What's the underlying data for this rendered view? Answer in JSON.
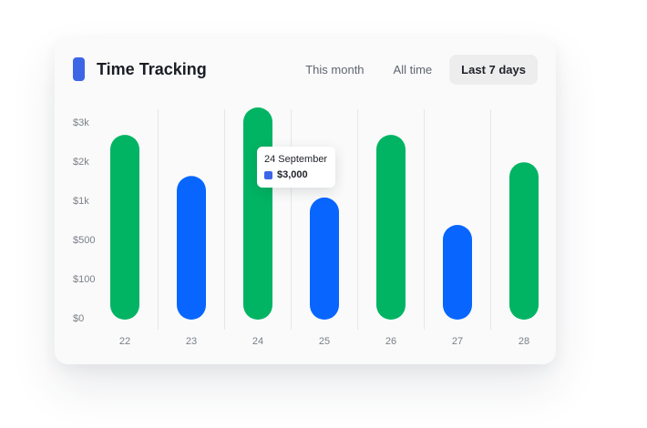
{
  "header": {
    "title": "Time Tracking",
    "tabs": [
      {
        "label": "This month",
        "active": false
      },
      {
        "label": "All time",
        "active": false
      },
      {
        "label": "Last 7 days",
        "active": true
      }
    ]
  },
  "colors": {
    "accent": "#3c66e6",
    "green": "#00b463",
    "blue": "#0866ff",
    "grid": "#e7e7e7",
    "axis_text": "#7a7f88"
  },
  "tooltip": {
    "date": "24 September",
    "value": "$3,000"
  },
  "chart_data": {
    "type": "bar",
    "categories": [
      "22",
      "23",
      "24",
      "25",
      "26",
      "27",
      "28"
    ],
    "y_ticks": [
      "$3k",
      "$2k",
      "$1k",
      "$500",
      "$100",
      "$0"
    ],
    "values": [
      2300,
      1250,
      3000,
      850,
      2300,
      500,
      1600
    ],
    "bar_colors": [
      "green",
      "blue",
      "green",
      "blue",
      "green",
      "blue",
      "green"
    ],
    "y_scale": "tick-level categorical",
    "grid": true,
    "legend": false,
    "title": "",
    "xlabel": "",
    "ylabel": ""
  }
}
